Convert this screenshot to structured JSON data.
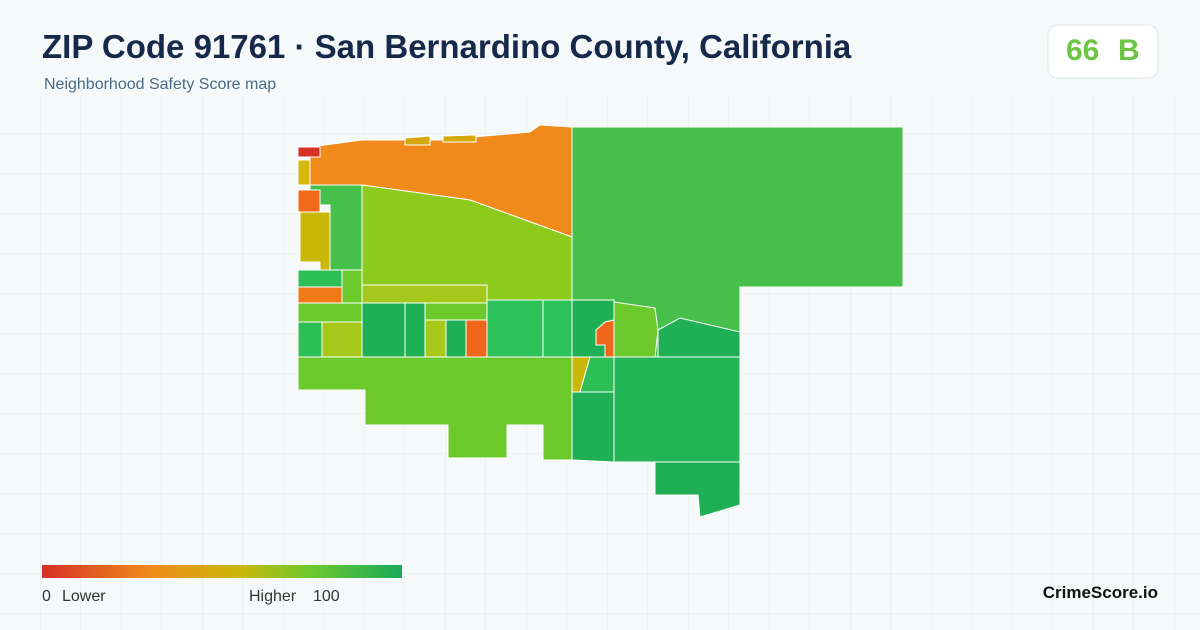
{
  "header": {
    "title": "ZIP Code 91761 · San Bernardino County, California",
    "subtitle": "Neighborhood Safety Score map"
  },
  "badge": {
    "score": 66,
    "grade": "B"
  },
  "legend": {
    "min": 0,
    "min_label": "Lower",
    "max_label": "Higher",
    "max": 100
  },
  "brand": "CrimeScore.io"
}
